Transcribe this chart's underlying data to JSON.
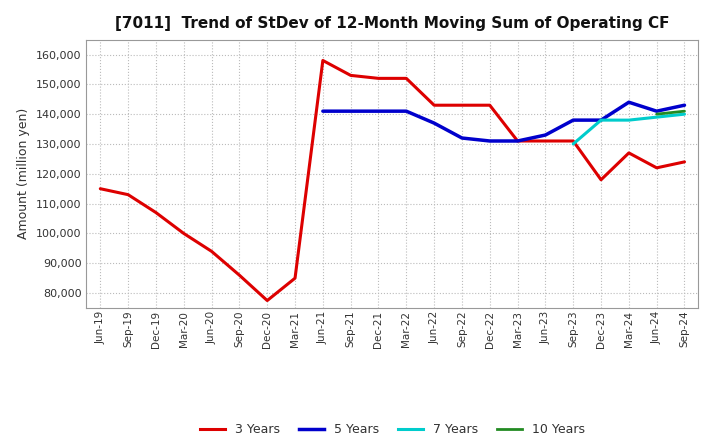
{
  "title": "[7011]  Trend of StDev of 12-Month Moving Sum of Operating CF",
  "ylabel": "Amount (million yen)",
  "background_color": "#ffffff",
  "grid_color": "#bbbbbb",
  "x_labels": [
    "Jun-19",
    "Sep-19",
    "Dec-19",
    "Mar-20",
    "Jun-20",
    "Sep-20",
    "Dec-20",
    "Mar-21",
    "Jun-21",
    "Sep-21",
    "Dec-21",
    "Mar-22",
    "Jun-22",
    "Sep-22",
    "Dec-22",
    "Mar-23",
    "Jun-23",
    "Sep-23",
    "Dec-23",
    "Mar-24",
    "Jun-24",
    "Sep-24"
  ],
  "series": {
    "3 Years": {
      "color": "#dd0000",
      "linewidth": 2.2,
      "values": [
        115000,
        113000,
        107000,
        100000,
        94000,
        86000,
        77500,
        85000,
        158000,
        153000,
        152000,
        152000,
        143000,
        143000,
        143000,
        131000,
        131000,
        131000,
        118000,
        127000,
        122000,
        124000
      ]
    },
    "5 Years": {
      "color": "#0000cc",
      "linewidth": 2.5,
      "values": [
        null,
        null,
        null,
        null,
        null,
        null,
        null,
        null,
        141000,
        141000,
        141000,
        141000,
        137000,
        132000,
        131000,
        131000,
        133000,
        138000,
        138000,
        144000,
        141000,
        143000
      ]
    },
    "7 Years": {
      "color": "#00cccc",
      "linewidth": 2.2,
      "values": [
        null,
        null,
        null,
        null,
        null,
        null,
        null,
        null,
        null,
        null,
        null,
        null,
        null,
        null,
        null,
        null,
        null,
        130000,
        138000,
        138000,
        139000,
        140000
      ]
    },
    "10 Years": {
      "color": "#228B22",
      "linewidth": 2.0,
      "values": [
        null,
        null,
        null,
        null,
        null,
        null,
        null,
        null,
        null,
        null,
        null,
        null,
        null,
        null,
        null,
        null,
        null,
        null,
        null,
        null,
        140000,
        141000
      ]
    }
  },
  "ylim": [
    75000,
    165000
  ],
  "yticks": [
    80000,
    90000,
    100000,
    110000,
    120000,
    130000,
    140000,
    150000,
    160000
  ],
  "legend_items": [
    "3 Years",
    "5 Years",
    "7 Years",
    "10 Years"
  ],
  "legend_colors": [
    "#dd0000",
    "#0000cc",
    "#00cccc",
    "#228B22"
  ],
  "legend_linewidths": [
    2.2,
    2.5,
    2.2,
    2.0
  ]
}
